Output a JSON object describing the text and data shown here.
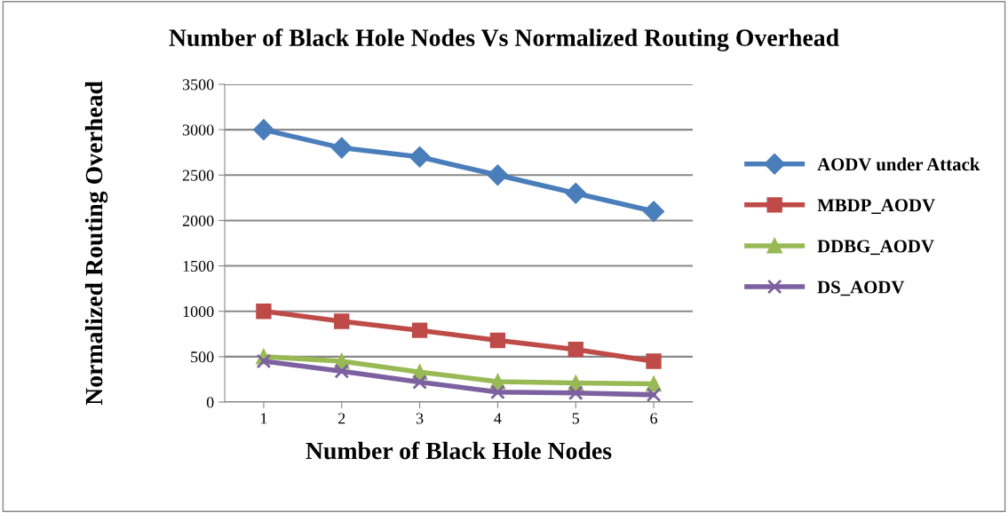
{
  "chart_data": {
    "type": "line",
    "title": "Number of Black Hole Nodes Vs Normalized Routing Overhead",
    "xlabel": "Number of Black Hole Nodes",
    "ylabel": "Normalized Routing Overhead",
    "categories": [
      "1",
      "2",
      "3",
      "4",
      "5",
      "6"
    ],
    "series": [
      {
        "name": "AODV under Attack",
        "color": "#4a7ebb",
        "marker": "diamond",
        "values": [
          3000,
          2800,
          2700,
          2500,
          2300,
          2100
        ]
      },
      {
        "name": "MBDP_AODV",
        "color": "#be4b48",
        "marker": "square",
        "values": [
          1000,
          890,
          790,
          680,
          580,
          450
        ]
      },
      {
        "name": "DDBG_AODV",
        "color": "#98b954",
        "marker": "triangle",
        "values": [
          500,
          450,
          330,
          225,
          210,
          200
        ]
      },
      {
        "name": "DS_AODV",
        "color": "#7d60a0",
        "marker": "cross",
        "values": [
          450,
          340,
          220,
          110,
          100,
          80
        ]
      }
    ],
    "ylim": [
      0,
      3500
    ],
    "yticks": [
      0,
      500,
      1000,
      1500,
      2000,
      2500,
      3000,
      3500
    ],
    "grid": "y",
    "legend": "right",
    "line_style": "solid"
  }
}
